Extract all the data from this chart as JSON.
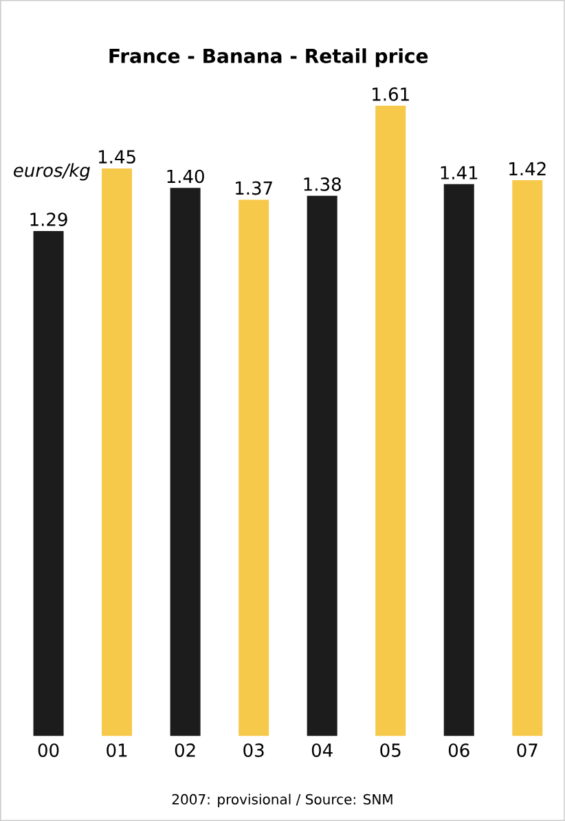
{
  "chart_data": {
    "type": "bar",
    "title": "France - Banana - Retail price",
    "categories": [
      "00",
      "01",
      "02",
      "03",
      "04",
      "05",
      "06",
      "07"
    ],
    "values": [
      1.29,
      1.45,
      1.4,
      1.37,
      1.38,
      1.61,
      1.41,
      1.42
    ],
    "colors": [
      "#1c1c1c",
      "#f6c94a",
      "#1c1c1c",
      "#f6c94a",
      "#1c1c1c",
      "#f6c94a",
      "#1c1c1c",
      "#f6c94a"
    ],
    "value_labels": [
      "1.29",
      "1.45",
      "1.40",
      "1.37",
      "1.38",
      "1.61",
      "1.41",
      "1.42"
    ],
    "annotations": [
      "euros/kg",
      "2007: provisional / Source: SNM"
    ]
  }
}
